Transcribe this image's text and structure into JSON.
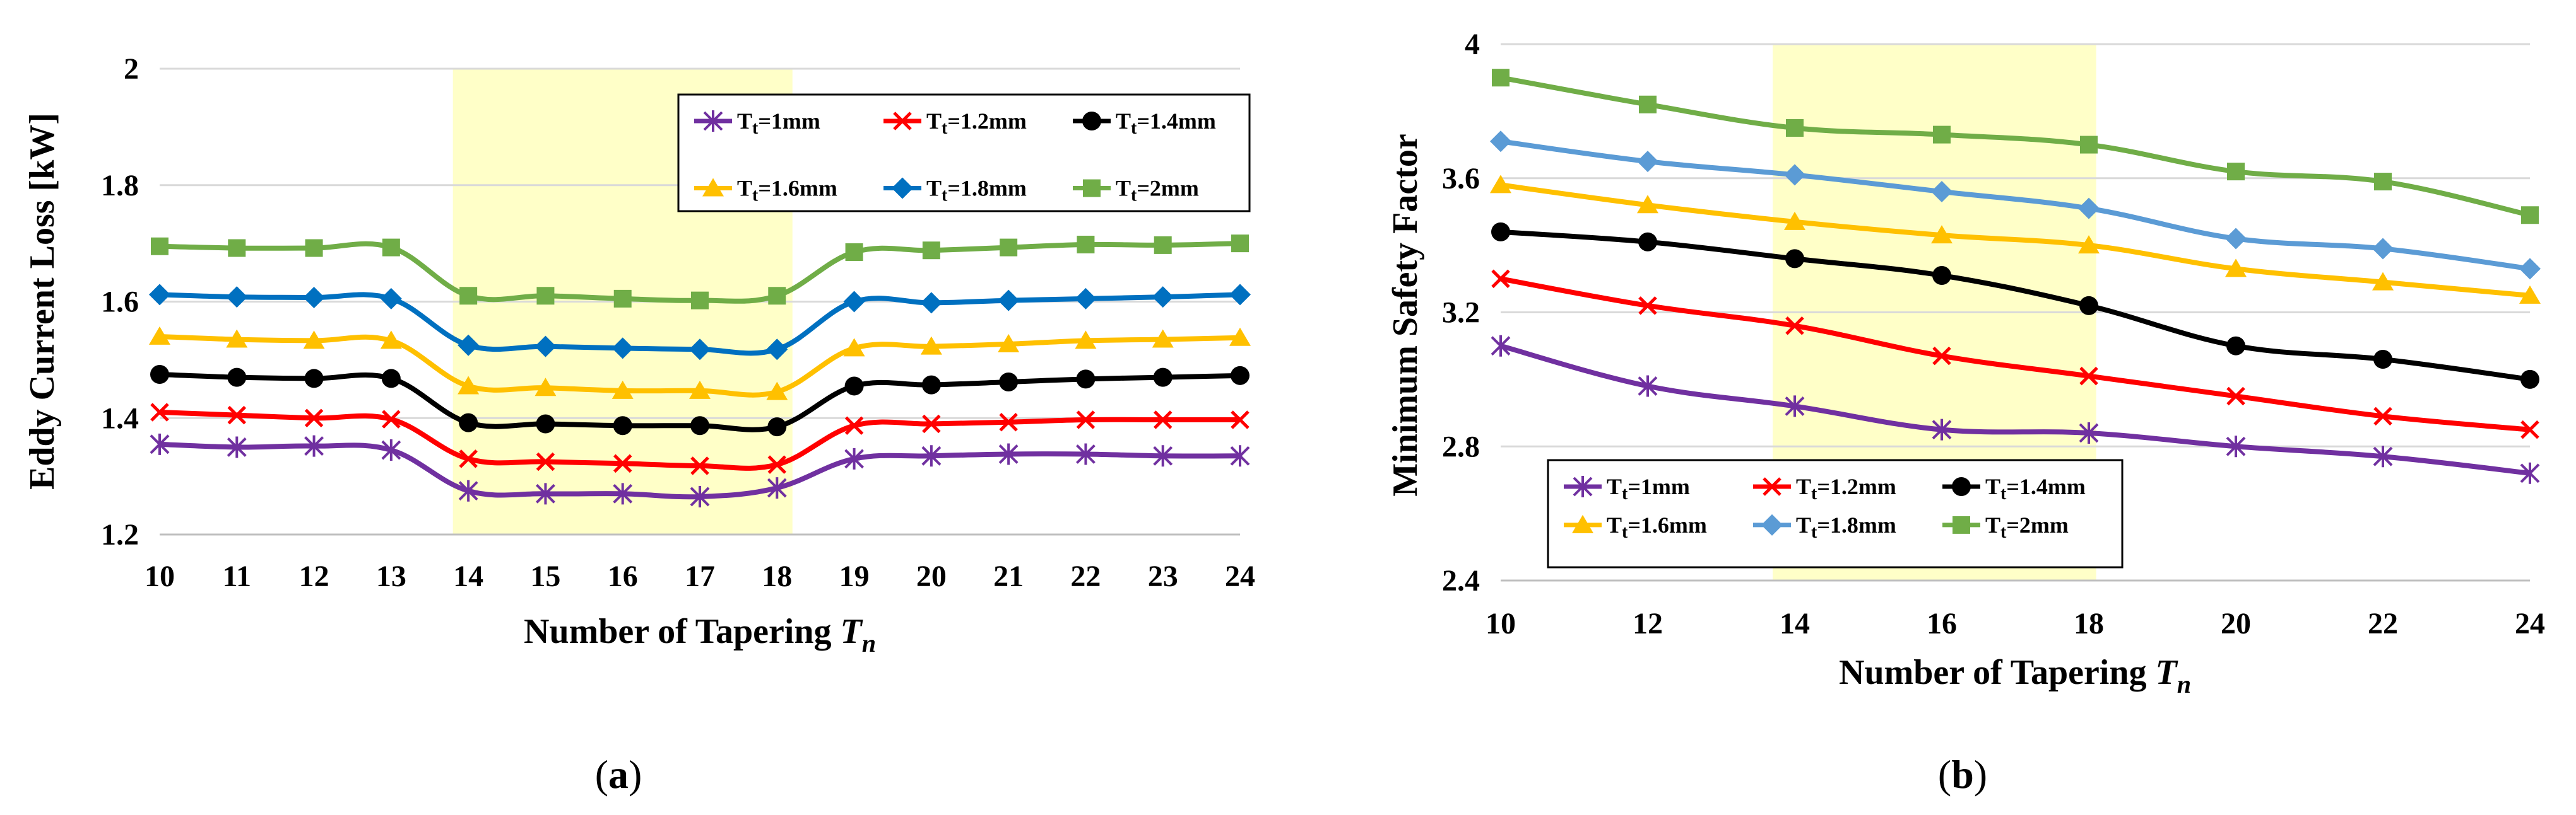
{
  "panels": [
    {
      "caption": "a",
      "chart_data": {
        "type": "line",
        "title": "",
        "xlabel": "Number of Tapering T",
        "xlabel_subscript": "n",
        "ylabel": "Eddy Current Loss [kW]",
        "ylim": [
          1.2,
          2.0
        ],
        "yticks": [
          1.2,
          1.4,
          1.6,
          1.8,
          2.0
        ],
        "ytick_labels": [
          "1.2",
          "1.4",
          "1.6",
          "1.8",
          "2"
        ],
        "x": [
          10,
          11,
          12,
          13,
          14,
          15,
          16,
          17,
          18,
          19,
          20,
          21,
          22,
          23,
          24
        ],
        "xtick_labels": [
          "10",
          "11",
          "12",
          "13",
          "14",
          "15",
          "16",
          "17",
          "18",
          "19",
          "20",
          "21",
          "22",
          "23",
          "24"
        ],
        "highlight_range": [
          13.8,
          18.2
        ],
        "highlight_color": "#ffffc8",
        "grid": "horizontal",
        "legend_position": "top-right",
        "series": [
          {
            "name": "1mm",
            "color": "#7030a0",
            "marker": "star",
            "values": [
              1.355,
              1.35,
              1.352,
              1.345,
              1.275,
              1.27,
              1.27,
              1.265,
              1.28,
              1.33,
              1.335,
              1.338,
              1.338,
              1.335,
              1.335
            ]
          },
          {
            "name": "1.2mm",
            "color": "#ff0000",
            "marker": "x",
            "values": [
              1.41,
              1.405,
              1.4,
              1.398,
              1.33,
              1.325,
              1.322,
              1.318,
              1.32,
              1.387,
              1.39,
              1.393,
              1.397,
              1.397,
              1.397
            ]
          },
          {
            "name": "1.4mm",
            "color": "#000000",
            "marker": "circle",
            "values": [
              1.475,
              1.47,
              1.468,
              1.468,
              1.392,
              1.39,
              1.387,
              1.387,
              1.385,
              1.455,
              1.457,
              1.462,
              1.467,
              1.47,
              1.473
            ]
          },
          {
            "name": "1.6mm",
            "color": "#ffc000",
            "marker": "triangle",
            "values": [
              1.54,
              1.535,
              1.533,
              1.533,
              1.455,
              1.452,
              1.447,
              1.447,
              1.445,
              1.52,
              1.523,
              1.527,
              1.533,
              1.535,
              1.538
            ]
          },
          {
            "name": "1.8mm",
            "color": "#0070c0",
            "marker": "diamond",
            "values": [
              1.612,
              1.608,
              1.607,
              1.605,
              1.525,
              1.523,
              1.52,
              1.518,
              1.518,
              1.6,
              1.598,
              1.602,
              1.605,
              1.608,
              1.612
            ]
          },
          {
            "name": "2mm",
            "color": "#70ad47",
            "marker": "square",
            "values": [
              1.695,
              1.692,
              1.692,
              1.693,
              1.61,
              1.61,
              1.605,
              1.602,
              1.61,
              1.685,
              1.688,
              1.693,
              1.698,
              1.697,
              1.7
            ]
          }
        ]
      }
    },
    {
      "caption": "b",
      "chart_data": {
        "type": "line",
        "title": "",
        "xlabel": "Number of Tapering T",
        "xlabel_subscript": "n",
        "ylabel": "Minimum Safety Factor",
        "ylim": [
          2.4,
          4.0
        ],
        "yticks": [
          2.4,
          2.8,
          3.2,
          3.6,
          4.0
        ],
        "ytick_labels": [
          "2.4",
          "2.8",
          "3.2",
          "3.6",
          "4"
        ],
        "x": [
          10,
          12,
          14,
          16,
          18,
          20,
          22,
          24
        ],
        "xtick_labels": [
          "10",
          "12",
          "14",
          "16",
          "18",
          "20",
          "22",
          "24"
        ],
        "highlight_range": [
          13.7,
          18.1
        ],
        "highlight_color": "#ffffc8",
        "grid": "horizontal",
        "legend_position": "bottom-left",
        "series": [
          {
            "name": "1mm",
            "color": "#7030a0",
            "marker": "star",
            "values": [
              3.1,
              2.98,
              2.92,
              2.85,
              2.84,
              2.8,
              2.77,
              2.72
            ]
          },
          {
            "name": "1.2mm",
            "color": "#ff0000",
            "marker": "x",
            "values": [
              3.3,
              3.22,
              3.16,
              3.07,
              3.01,
              2.95,
              2.89,
              2.85
            ]
          },
          {
            "name": "1.4mm",
            "color": "#000000",
            "marker": "circle",
            "values": [
              3.44,
              3.41,
              3.36,
              3.31,
              3.22,
              3.1,
              3.06,
              3.0
            ]
          },
          {
            "name": "1.6mm",
            "color": "#ffc000",
            "marker": "triangle",
            "values": [
              3.58,
              3.52,
              3.47,
              3.43,
              3.4,
              3.33,
              3.29,
              3.25
            ]
          },
          {
            "name": "1.8mm",
            "color": "#5b9bd5",
            "marker": "diamond",
            "values": [
              3.71,
              3.65,
              3.61,
              3.56,
              3.51,
              3.42,
              3.39,
              3.33
            ]
          },
          {
            "name": "2mm",
            "color": "#70ad47",
            "marker": "square",
            "values": [
              3.9,
              3.82,
              3.75,
              3.73,
              3.7,
              3.62,
              3.59,
              3.49
            ]
          }
        ]
      }
    }
  ],
  "legend_prefix": "T",
  "legend_subscript": "t",
  "legend_separator": "="
}
